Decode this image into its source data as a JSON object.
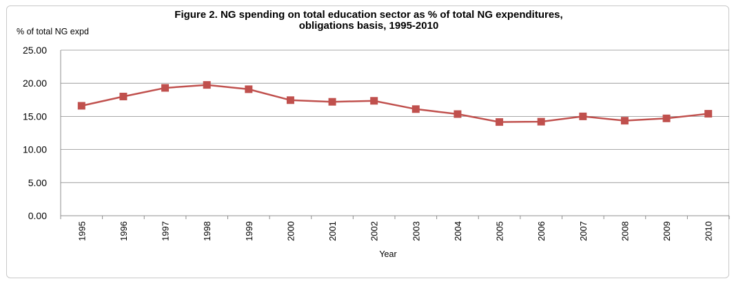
{
  "chart_data": {
    "type": "line",
    "title_line1": "Figure 2.  NG spending on total education sector as % of total NG expenditures,",
    "title_line2": "obligations basis, 1995-2010",
    "ylabel": "% of total NG expd",
    "xlabel": "Year",
    "ylim": [
      0,
      25
    ],
    "yticks": [
      "0.00",
      "5.00",
      "10.00",
      "15.00",
      "20.00",
      "25.00"
    ],
    "grid": true,
    "categories": [
      "1995",
      "1996",
      "1997",
      "1998",
      "1999",
      "2000",
      "2001",
      "2002",
      "2003",
      "2004",
      "2005",
      "2006",
      "2007",
      "2008",
      "2009",
      "2010"
    ],
    "series": [
      {
        "values": [
          16.6,
          18.0,
          19.3,
          19.75,
          19.1,
          17.45,
          17.2,
          17.35,
          16.1,
          15.35,
          14.15,
          14.2,
          15.0,
          14.35,
          14.7,
          15.4
        ],
        "color": "#c0504d"
      }
    ]
  }
}
